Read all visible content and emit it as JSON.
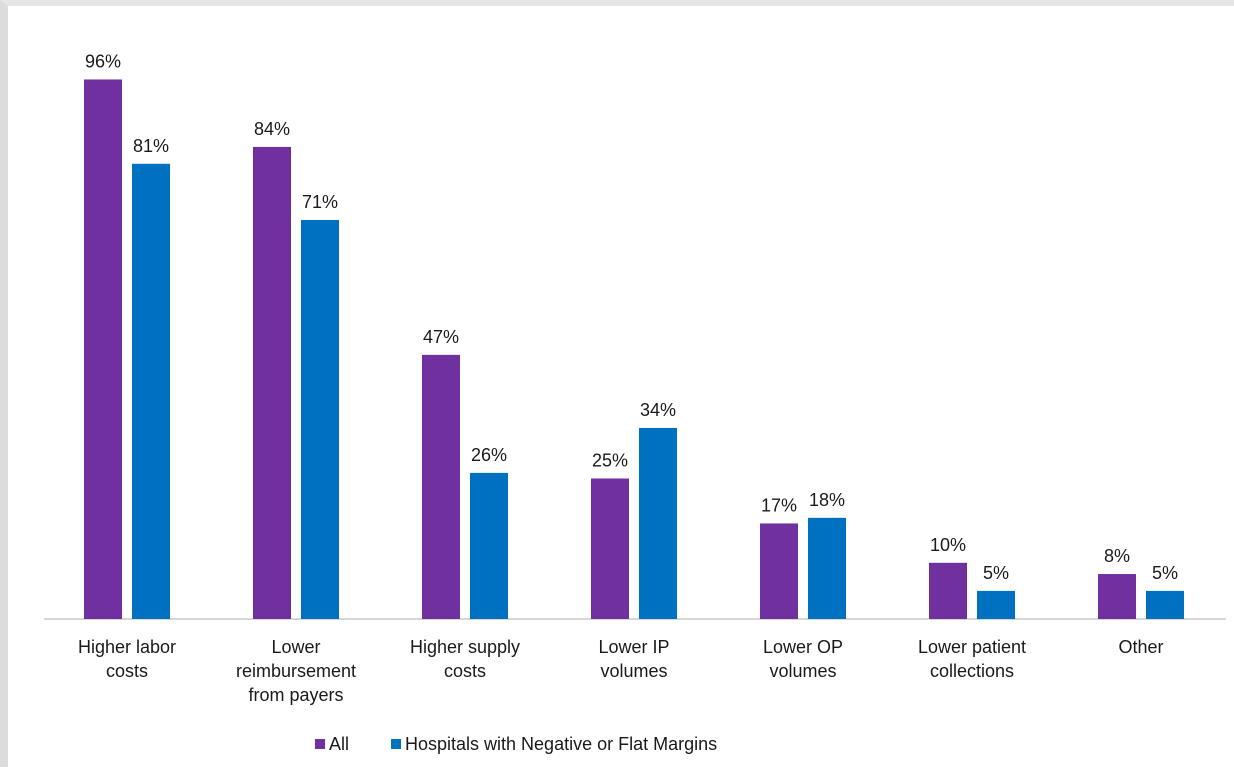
{
  "chart_data": {
    "type": "bar",
    "title": "",
    "xlabel": "",
    "ylabel": "",
    "ylim": [
      0,
      100
    ],
    "grid": false,
    "legend_position": "bottom",
    "categories": [
      [
        "Higher labor",
        "costs"
      ],
      [
        "Lower",
        "reimbursement",
        "from payers"
      ],
      [
        "Higher supply",
        "costs"
      ],
      [
        "Lower IP",
        "volumes"
      ],
      [
        "Lower OP",
        "volumes"
      ],
      [
        "Lower patient",
        "collections"
      ],
      [
        "Other"
      ]
    ],
    "series": [
      {
        "name": "All",
        "color": "#7030a0",
        "values": [
          96,
          84,
          47,
          25,
          17,
          10,
          8
        ],
        "labels": [
          "96%",
          "84%",
          "47%",
          "25%",
          "17%",
          "10%",
          "8%"
        ]
      },
      {
        "name": "Hospitals with Negative or Flat Margins",
        "color": "#0070c0",
        "values": [
          81,
          71,
          26,
          34,
          18,
          5,
          5
        ],
        "labels": [
          "81%",
          "71%",
          "26%",
          "34%",
          "18%",
          "5%",
          "5%"
        ]
      }
    ]
  }
}
